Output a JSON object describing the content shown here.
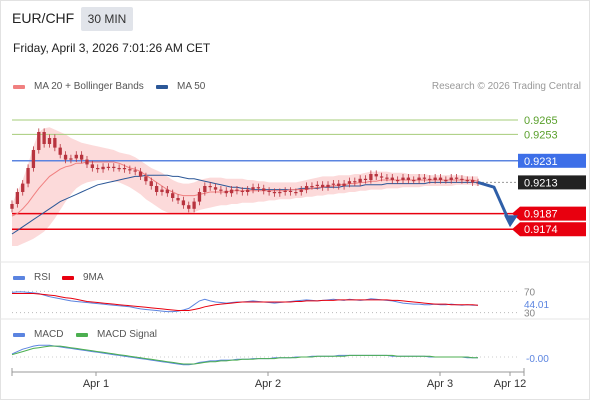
{
  "header": {
    "symbol": "EUR/CHF",
    "timeframe": "30 MIN",
    "datetime": "Friday, April 3, 2026 7:01:26 AM CET"
  },
  "main_legend": {
    "ma20_label": "MA 20 + Bollinger Bands",
    "ma50_label": "MA 50",
    "credit": "Research © 2026 Trading Central"
  },
  "rsi_legend": {
    "rsi_label": "RSI",
    "ma_label": "9MA"
  },
  "macd_legend": {
    "macd_label": "MACD",
    "signal_label": "MACD Signal"
  },
  "colors": {
    "ma20": "#f08080",
    "ma50": "#2b5797",
    "bollinger_fill": "#fbd3d3",
    "candle_body": "#b8343f",
    "resistance_line": "#a6cc7a",
    "resistance_text": "#5aa02c",
    "pivot_line": "#5b84e0",
    "pivot_tag": "#3d6fe8",
    "support": "#e8000f",
    "current_tag": "#222222",
    "forecast_arrow": "#2f5fa8",
    "rsi": "#5b84e0",
    "rsi_ma": "#e8000f",
    "macd": "#5b84e0",
    "macd_signal": "#4caf50"
  },
  "chart_data": {
    "type": "line",
    "xlabel": "",
    "ylabel": "",
    "x_ticks": [
      "Apr 1",
      "Apr 2",
      "Apr 3",
      "Apr 12"
    ],
    "price_levels": [
      {
        "label": "0.9265",
        "kind": "resistance"
      },
      {
        "label": "0.9253",
        "kind": "resistance"
      },
      {
        "label": "0.9231",
        "kind": "pivot"
      },
      {
        "label": "0.9213",
        "kind": "current"
      },
      {
        "label": "0.9187",
        "kind": "support"
      },
      {
        "label": "0.9174",
        "kind": "support"
      }
    ],
    "price": {
      "ylim": [
        0.915,
        0.9285
      ],
      "close": [
        0.9195,
        0.9205,
        0.9212,
        0.9225,
        0.924,
        0.9255,
        0.9245,
        0.925,
        0.9242,
        0.9236,
        0.9232,
        0.9233,
        0.9236,
        0.9232,
        0.9228,
        0.9225,
        0.9224,
        0.9226,
        0.9226,
        0.9225,
        0.9225,
        0.9224,
        0.9223,
        0.9222,
        0.9218,
        0.9214,
        0.921,
        0.9205,
        0.9207,
        0.9204,
        0.92,
        0.9198,
        0.9194,
        0.9191,
        0.9197,
        0.9205,
        0.921,
        0.9209,
        0.9207,
        0.9206,
        0.9204,
        0.9207,
        0.9206,
        0.9205,
        0.9207,
        0.9209,
        0.9208,
        0.9206,
        0.9205,
        0.9204,
        0.9205,
        0.9206,
        0.9205,
        0.9205,
        0.9207,
        0.921,
        0.921,
        0.9211,
        0.9209,
        0.9211,
        0.9212,
        0.921,
        0.9212,
        0.9214,
        0.9213,
        0.9216,
        0.9215,
        0.922,
        0.9218,
        0.9217,
        0.9217,
        0.9215,
        0.9215,
        0.9217,
        0.9215,
        0.9215,
        0.9217,
        0.9216,
        0.9215,
        0.9217,
        0.9215,
        0.9215,
        0.9217,
        0.9216,
        0.9215,
        0.9215,
        0.9213,
        0.9213
      ],
      "ma20": [
        0.9185,
        0.9187,
        0.9191,
        0.9196,
        0.9202,
        0.9208,
        0.9213,
        0.9218,
        0.9221,
        0.9224,
        0.9226,
        0.9227,
        0.9229,
        0.9229,
        0.923,
        0.923,
        0.923,
        0.923,
        0.923,
        0.923,
        0.9229,
        0.9227,
        0.9225,
        0.9224,
        0.9222,
        0.9219,
        0.9216,
        0.9213,
        0.921,
        0.9207,
        0.9205,
        0.9203,
        0.9202,
        0.9202,
        0.9202,
        0.9203,
        0.9204,
        0.9205,
        0.9205,
        0.9205,
        0.9205,
        0.9206,
        0.9206,
        0.9206,
        0.9206,
        0.9206,
        0.9206,
        0.9206,
        0.9206,
        0.9206,
        0.9206,
        0.9206,
        0.9207,
        0.9207,
        0.9207,
        0.9207,
        0.9208,
        0.9209,
        0.9209,
        0.921,
        0.921,
        0.9211,
        0.9211,
        0.9212,
        0.9212,
        0.9213,
        0.9213,
        0.9214,
        0.9214,
        0.9215,
        0.9215,
        0.9215,
        0.9215,
        0.9215,
        0.9215,
        0.9215,
        0.9215,
        0.9215,
        0.9215,
        0.9215,
        0.9215,
        0.9215,
        0.9215,
        0.9215,
        0.9215,
        0.9215,
        0.9215,
        0.9214
      ],
      "boll_upper": [
        0.9195,
        0.9205,
        0.9215,
        0.9228,
        0.9243,
        0.9255,
        0.9258,
        0.9259,
        0.9257,
        0.9255,
        0.9253,
        0.925,
        0.9248,
        0.9246,
        0.9245,
        0.9244,
        0.9243,
        0.9242,
        0.9241,
        0.924,
        0.9238,
        0.9237,
        0.9236,
        0.9234,
        0.9231,
        0.9228,
        0.9225,
        0.9223,
        0.9221,
        0.9218,
        0.9215,
        0.9213,
        0.9212,
        0.9212,
        0.9213,
        0.9215,
        0.9216,
        0.9217,
        0.9217,
        0.9217,
        0.9216,
        0.9216,
        0.9216,
        0.9216,
        0.9215,
        0.9215,
        0.9214,
        0.9214,
        0.9213,
        0.9213,
        0.9213,
        0.9213,
        0.9213,
        0.9213,
        0.9214,
        0.9215,
        0.9216,
        0.9217,
        0.9218,
        0.9218,
        0.9218,
        0.9219,
        0.9219,
        0.9219,
        0.922,
        0.922,
        0.9221,
        0.9222,
        0.9222,
        0.9222,
        0.9222,
        0.9221,
        0.9221,
        0.9221,
        0.922,
        0.922,
        0.922,
        0.922,
        0.9219,
        0.9219,
        0.9219,
        0.9219,
        0.9219,
        0.9219,
        0.9219,
        0.9218,
        0.9218,
        0.9218
      ],
      "boll_lower": [
        0.916,
        0.916,
        0.9162,
        0.9164,
        0.9166,
        0.9169,
        0.9172,
        0.9177,
        0.9183,
        0.919,
        0.9197,
        0.9203,
        0.9208,
        0.9211,
        0.9213,
        0.9214,
        0.9215,
        0.9215,
        0.9215,
        0.9214,
        0.9213,
        0.9211,
        0.9209,
        0.9206,
        0.9203,
        0.9199,
        0.9196,
        0.9193,
        0.919,
        0.9188,
        0.9187,
        0.9187,
        0.9187,
        0.9187,
        0.9188,
        0.919,
        0.9191,
        0.9192,
        0.9193,
        0.9194,
        0.9194,
        0.9195,
        0.9195,
        0.9196,
        0.9196,
        0.9196,
        0.9197,
        0.9197,
        0.9198,
        0.9198,
        0.9199,
        0.9199,
        0.9199,
        0.92,
        0.92,
        0.9201,
        0.9201,
        0.9202,
        0.9202,
        0.9203,
        0.9203,
        0.9204,
        0.9204,
        0.9205,
        0.9205,
        0.9206,
        0.9206,
        0.9207,
        0.9207,
        0.9207,
        0.9208,
        0.9208,
        0.9208,
        0.9209,
        0.9209,
        0.9209,
        0.9209,
        0.921,
        0.921,
        0.921,
        0.921,
        0.921,
        0.921,
        0.9211,
        0.9211,
        0.9211,
        0.9211,
        0.921
      ],
      "ma50": [
        0.917,
        0.9173,
        0.9176,
        0.9179,
        0.9182,
        0.9185,
        0.9188,
        0.9191,
        0.9194,
        0.9197,
        0.9199,
        0.9201,
        0.9203,
        0.9205,
        0.9207,
        0.9209,
        0.9211,
        0.9212,
        0.9213,
        0.9214,
        0.9215,
        0.9216,
        0.9217,
        0.9218,
        0.9218,
        0.9219,
        0.9219,
        0.9219,
        0.9219,
        0.9219,
        0.9218,
        0.9218,
        0.9217,
        0.9216,
        0.9216,
        0.9215,
        0.9214,
        0.9213,
        0.9212,
        0.9211,
        0.921,
        0.9209,
        0.9209,
        0.9208,
        0.9208,
        0.9207,
        0.9207,
        0.9207,
        0.9207,
        0.9207,
        0.9207,
        0.9207,
        0.9207,
        0.9207,
        0.9208,
        0.9208,
        0.9208,
        0.9208,
        0.9209,
        0.9209,
        0.9209,
        0.9209,
        0.921,
        0.921,
        0.921,
        0.921,
        0.9211,
        0.9211,
        0.9211,
        0.9211,
        0.9212,
        0.9212,
        0.9212,
        0.9212,
        0.9212,
        0.9212,
        0.9212,
        0.9212,
        0.9213,
        0.9213,
        0.9213,
        0.9213,
        0.9213,
        0.9213,
        0.9213,
        0.9213,
        0.9213,
        0.9213
      ],
      "forecast": [
        0.9213,
        0.9209,
        0.9179
      ]
    },
    "rsi": {
      "ylim": [
        20,
        80
      ],
      "levels": [
        "70",
        "30"
      ],
      "last_label": "44.01",
      "rsi": [
        68,
        69,
        69,
        68,
        67,
        66,
        63,
        60,
        58,
        56,
        54,
        52,
        51,
        50,
        49,
        48,
        47,
        46,
        45,
        44,
        43,
        42,
        41,
        39,
        37,
        36,
        35,
        34,
        33,
        32,
        32,
        33,
        35,
        38,
        45,
        52,
        55,
        52,
        50,
        49,
        48,
        49,
        50,
        50,
        51,
        52,
        51,
        50,
        49,
        48,
        49,
        50,
        51,
        52,
        53,
        54,
        53,
        52,
        53,
        54,
        55,
        54,
        53,
        55,
        54,
        53,
        54,
        56,
        55,
        54,
        53,
        52,
        50,
        48,
        47,
        46,
        46,
        45,
        45,
        46,
        45,
        45,
        46,
        45,
        44,
        45,
        44,
        44
      ],
      "ma": [
        66,
        66,
        66,
        66,
        66,
        65,
        64,
        63,
        62,
        60,
        58,
        57,
        55,
        53,
        51,
        50,
        49,
        48,
        47,
        46,
        45,
        44,
        43,
        42,
        41,
        40,
        39,
        38,
        37,
        36,
        35,
        34,
        34,
        34,
        36,
        38,
        41,
        43,
        45,
        46,
        47,
        48,
        49,
        50,
        50,
        50,
        50,
        50,
        50,
        50,
        50,
        50,
        50,
        51,
        51,
        52,
        52,
        52,
        53,
        53,
        53,
        54,
        54,
        54,
        54,
        54,
        54,
        54,
        54,
        54,
        54,
        53,
        53,
        52,
        51,
        50,
        49,
        48,
        47,
        46,
        46,
        46,
        45,
        45,
        45,
        45,
        45,
        44
      ]
    },
    "macd": {
      "ylim": [
        -0.0018,
        0.0018
      ],
      "last_label": "-0.00",
      "macd": [
        0.0004,
        0.0007,
        0.001,
        0.0012,
        0.0014,
        0.0015,
        0.0015,
        0.0015,
        0.0014,
        0.0013,
        0.0012,
        0.0011,
        0.001,
        0.0009,
        0.0008,
        0.0007,
        0.0006,
        0.0005,
        0.0004,
        0.0003,
        0.0002,
        0.0001,
        0.0,
        -0.0001,
        -0.0002,
        -0.0003,
        -0.0004,
        -0.0005,
        -0.0006,
        -0.0007,
        -0.0008,
        -0.0009,
        -0.001,
        -0.001,
        -0.0009,
        -0.0007,
        -0.0006,
        -0.0005,
        -0.0005,
        -0.0004,
        -0.0004,
        -0.0004,
        -0.0003,
        -0.0003,
        -0.0003,
        -0.0002,
        -0.0002,
        -0.0002,
        -0.0002,
        -0.0001,
        -0.0001,
        -0.0001,
        -0.0001,
        0.0,
        0.0,
        0.0,
        0.0001,
        0.0001,
        0.0001,
        0.0001,
        0.0001,
        0.0002,
        0.0002,
        0.0002,
        0.0002,
        0.0002,
        0.0002,
        0.0002,
        0.0002,
        0.0002,
        0.0002,
        0.0001,
        0.0001,
        0.0001,
        0.0001,
        0.0001,
        0.0001,
        0.0001,
        0.0,
        0.0,
        0.0,
        0.0,
        0.0,
        0.0,
        0.0,
        -0.0001,
        -0.0001,
        -0.0001
      ],
      "signal": [
        0.0003,
        0.0005,
        0.0007,
        0.0009,
        0.0011,
        0.0012,
        0.0013,
        0.0014,
        0.0014,
        0.0014,
        0.0013,
        0.0012,
        0.0011,
        0.001,
        0.0009,
        0.0008,
        0.0007,
        0.0006,
        0.0005,
        0.0004,
        0.0003,
        0.0002,
        0.0001,
        0.0,
        -0.0001,
        -0.0002,
        -0.0003,
        -0.0004,
        -0.0005,
        -0.0006,
        -0.0007,
        -0.0008,
        -0.0009,
        -0.0009,
        -0.0009,
        -0.0008,
        -0.0007,
        -0.0006,
        -0.0006,
        -0.0005,
        -0.0005,
        -0.0004,
        -0.0004,
        -0.0003,
        -0.0003,
        -0.0003,
        -0.0002,
        -0.0002,
        -0.0002,
        -0.0002,
        -0.0001,
        -0.0001,
        -0.0001,
        -0.0001,
        0.0,
        0.0,
        0.0,
        0.0001,
        0.0001,
        0.0001,
        0.0001,
        0.0001,
        0.0001,
        0.0002,
        0.0002,
        0.0002,
        0.0002,
        0.0002,
        0.0002,
        0.0002,
        0.0002,
        0.0002,
        0.0001,
        0.0001,
        0.0001,
        0.0001,
        0.0001,
        0.0001,
        0.0001,
        0.0,
        0.0,
        0.0,
        0.0,
        0.0,
        0.0,
        0.0,
        -0.0001,
        -0.0001
      ]
    }
  }
}
